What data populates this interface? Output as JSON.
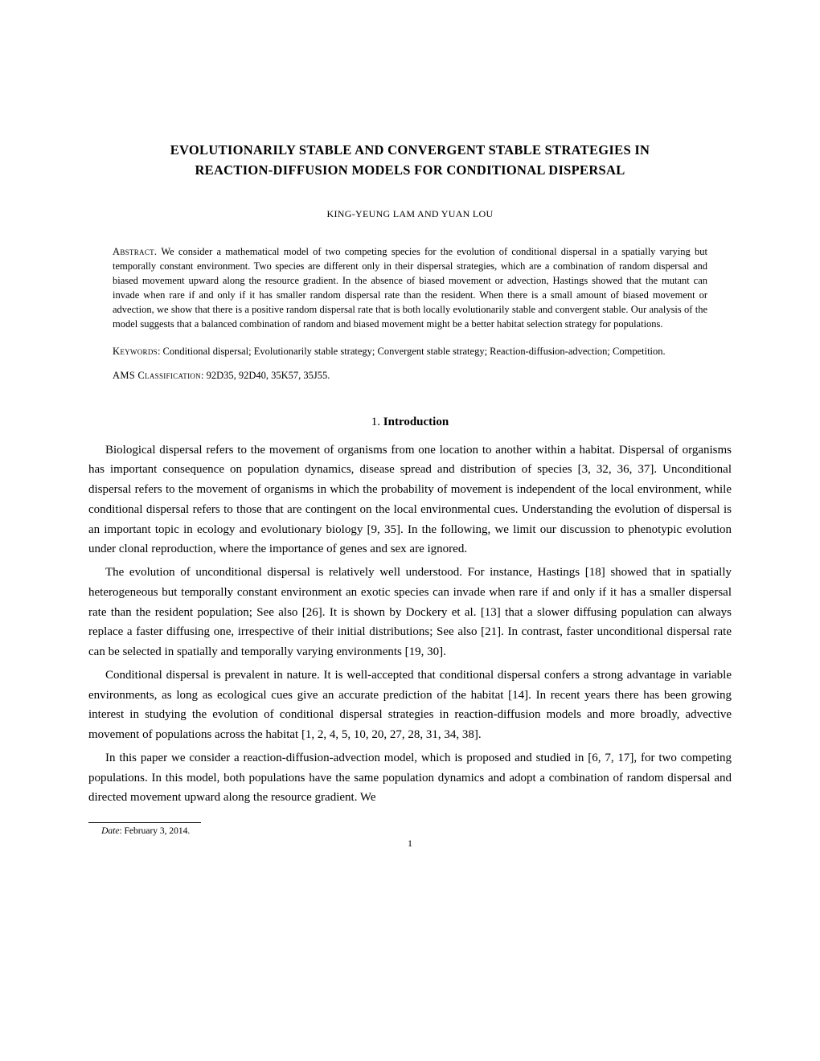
{
  "title_line1": "EVOLUTIONARILY STABLE AND CONVERGENT STABLE STRATEGIES IN",
  "title_line2": "REACTION-DIFFUSION MODELS FOR CONDITIONAL DISPERSAL",
  "authors": "KING-YEUNG LAM AND YUAN LOU",
  "abstract_label": "Abstract.",
  "abstract_text": " We consider a mathematical model of two competing species for the evolution of conditional dispersal in a spatially varying but temporally constant environment. Two species are different only in their dispersal strategies, which are a combination of random dispersal and biased movement upward along the resource gradient. In the absence of biased movement or advection, Hastings showed that the mutant can invade when rare if and only if it has smaller random dispersal rate than the resident. When there is a small amount of biased movement or advection, we show that there is a positive random dispersal rate that is both locally evolutionarily stable and convergent stable. Our analysis of the model suggests that a balanced combination of random and biased movement might be a better habitat selection strategy for populations.",
  "keywords_label": "Keywords",
  "keywords_text": ": Conditional dispersal; Evolutionarily stable strategy; Convergent stable strategy; Reaction-diffusion-advection; Competition.",
  "ams_label": "AMS Classification",
  "ams_text": ": 92D35, 92D40, 35K57, 35J55.",
  "section_number": "1.",
  "section_title": "Introduction",
  "para1": "Biological dispersal refers to the movement of organisms from one location to another within a habitat. Dispersal of organisms has important consequence on population dynamics, disease spread and distribution of species [3, 32, 36, 37]. Unconditional dispersal refers to the movement of organisms in which the probability of movement is independent of the local environment, while conditional dispersal refers to those that are contingent on the local environmental cues. Understanding the evolution of dispersal is an important topic in ecology and evolutionary biology [9, 35]. In the following, we limit our discussion to phenotypic evolution under clonal reproduction, where the importance of genes and sex are ignored.",
  "para2": "The evolution of unconditional dispersal is relatively well understood. For instance, Hastings [18] showed that in spatially heterogeneous but temporally constant environment an exotic species can invade when rare if and only if it has a smaller dispersal rate than the resident population; See also [26]. It is shown by Dockery et al. [13] that a slower diffusing population can always replace a faster diffusing one, irrespective of their initial distributions; See also [21]. In contrast, faster unconditional dispersal rate can be selected in spatially and temporally varying environments [19, 30].",
  "para3": "Conditional dispersal is prevalent in nature. It is well-accepted that conditional dispersal confers a strong advantage in variable environments, as long as ecological cues give an accurate prediction of the habitat [14]. In recent years there has been growing interest in studying the evolution of conditional dispersal strategies in reaction-diffusion models and more broadly, advective movement of populations across the habitat [1, 2, 4, 5, 10, 20, 27, 28, 31, 34, 38].",
  "para4": "In this paper we consider a reaction-diffusion-advection model, which is proposed and studied in [6, 7, 17], for two competing populations. In this model, both populations have the same population dynamics and adopt a combination of random dispersal and directed movement upward along the resource gradient. We",
  "footnote_label": "Date",
  "footnote_text": ": February 3, 2014.",
  "page_number": "1"
}
